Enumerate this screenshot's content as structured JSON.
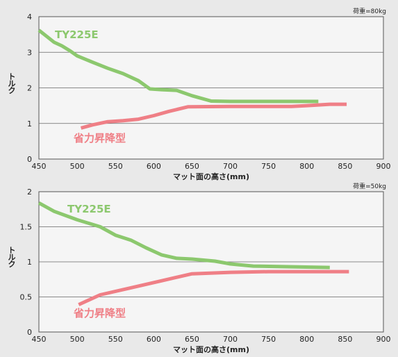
{
  "chart_data": [
    {
      "type": "line",
      "note": "荷重=80kg",
      "xlabel": "マット面の高さ(mm)",
      "ylabel": "トルク",
      "xlim": [
        450,
        900
      ],
      "ylim": [
        0,
        4
      ],
      "xticks": [
        450,
        500,
        550,
        600,
        650,
        700,
        750,
        800,
        850,
        900
      ],
      "yticks": [
        0,
        1,
        2,
        3,
        4
      ],
      "grid": "horizontal",
      "series": [
        {
          "name": "TY225E",
          "color": "#8cc86e",
          "x": [
            450,
            460,
            470,
            480,
            490,
            500,
            520,
            540,
            560,
            580,
            595,
            610,
            630,
            650,
            675,
            700,
            750,
            800,
            815
          ],
          "y": [
            3.62,
            3.45,
            3.28,
            3.18,
            3.05,
            2.9,
            2.72,
            2.55,
            2.4,
            2.2,
            1.97,
            1.95,
            1.93,
            1.78,
            1.63,
            1.62,
            1.62,
            1.62,
            1.62
          ]
        },
        {
          "name": "省力昇降型",
          "color": "#ef7f86",
          "x": [
            505,
            520,
            540,
            560,
            580,
            600,
            620,
            645,
            700,
            750,
            780,
            800,
            830,
            852
          ],
          "y": [
            0.87,
            0.96,
            1.05,
            1.08,
            1.12,
            1.22,
            1.34,
            1.47,
            1.48,
            1.48,
            1.48,
            1.5,
            1.54,
            1.54
          ]
        }
      ]
    },
    {
      "type": "line",
      "note": "荷重=50kg",
      "xlabel": "マット面の高さ(mm)",
      "ylabel": "トルク",
      "xlim": [
        450,
        900
      ],
      "ylim": [
        0,
        2
      ],
      "xticks": [
        450,
        500,
        550,
        600,
        650,
        700,
        750,
        800,
        850,
        900
      ],
      "yticks": [
        0,
        0.5,
        1,
        1.5,
        2
      ],
      "grid": "horizontal",
      "series": [
        {
          "name": "TY225E",
          "color": "#8cc86e",
          "x": [
            450,
            470,
            500,
            530,
            550,
            570,
            590,
            610,
            630,
            650,
            680,
            700,
            730,
            780,
            830
          ],
          "y": [
            1.84,
            1.72,
            1.6,
            1.5,
            1.38,
            1.31,
            1.2,
            1.1,
            1.05,
            1.04,
            1.01,
            0.97,
            0.94,
            0.93,
            0.92
          ]
        },
        {
          "name": "省力昇降型",
          "color": "#ef7f86",
          "x": [
            502,
            530,
            570,
            610,
            650,
            700,
            750,
            800,
            855
          ],
          "y": [
            0.39,
            0.53,
            0.63,
            0.73,
            0.83,
            0.85,
            0.86,
            0.86,
            0.86
          ]
        }
      ]
    }
  ]
}
